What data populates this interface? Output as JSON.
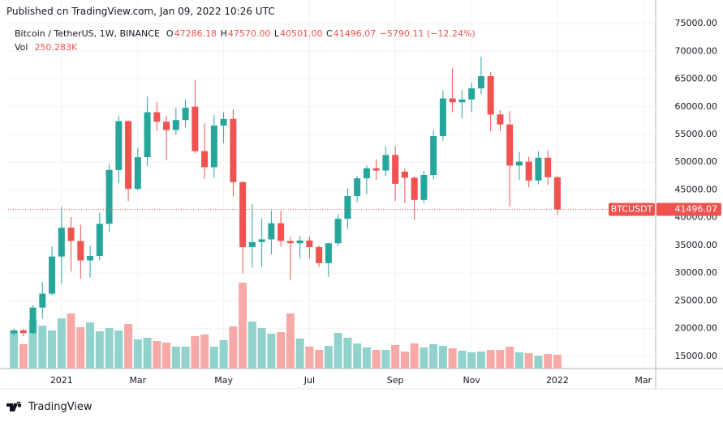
{
  "published": "Published on TradingView.com, Jan 09, 2022 10:26 UTC",
  "brand": "TradingView",
  "legend": {
    "symbol": "Bitcoin / TetherUS, 1W, BINANCE",
    "o_prefix": "O",
    "o": "47286.18",
    "h_prefix": "H",
    "h": "47570.00",
    "l_prefix": "L",
    "l": "40501.00",
    "c_prefix": "C",
    "c": "41496.07",
    "change": "−5790.11 (−12.24%)",
    "vol_prefix": "Vol",
    "vol": "250.283K"
  },
  "chart_data": {
    "type": "candlestick",
    "ticker_tag": "BTCUSDT",
    "last_price_label": "41496.07",
    "up_color": "#26a69a",
    "down_color": "#ef5350",
    "volume_up_color": "#92d2cc",
    "volume_down_color": "#f7a9a7",
    "open": [
      19150,
      19700,
      19200,
      23800,
      26300,
      33000,
      38200,
      35800,
      32300,
      33100,
      38900,
      48600,
      57400,
      45200,
      50900,
      59000,
      57300,
      55800,
      57600,
      60000,
      52000,
      49100,
      56600,
      57800,
      46400,
      34700,
      35600,
      36100,
      39000,
      35800,
      35400,
      35900,
      34700,
      31800,
      35400,
      39800,
      43900,
      47100,
      48900,
      48500,
      51300,
      48300,
      47200,
      43200,
      47700,
      54700,
      61500,
      60800,
      61300,
      63300,
      65500,
      58600,
      56800,
      49400,
      50100,
      46700,
      50800,
      47286.18
    ],
    "high": [
      19950,
      19900,
      24200,
      28400,
      34800,
      41950,
      40100,
      38700,
      34900,
      40900,
      49700,
      58400,
      57500,
      52600,
      61800,
      60800,
      58400,
      59800,
      61300,
      64850,
      57000,
      58500,
      59000,
      59500,
      46600,
      42400,
      39900,
      41300,
      41300,
      36600,
      36700,
      36600,
      35000,
      35500,
      40600,
      45300,
      47500,
      49400,
      50500,
      52900,
      52900,
      48800,
      47500,
      48500,
      55700,
      62900,
      67000,
      63000,
      64300,
      69000,
      66300,
      59400,
      59200,
      51900,
      51000,
      52000,
      52100,
      47570
    ],
    "low": [
      18700,
      18600,
      19000,
      21800,
      26000,
      28100,
      30300,
      29000,
      29200,
      32300,
      37400,
      46200,
      43000,
      44900,
      49300,
      55600,
      50400,
      54900,
      56300,
      51600,
      47000,
      47200,
      53400,
      43800,
      30000,
      31000,
      31100,
      33400,
      34800,
      28800,
      32700,
      32700,
      31100,
      29300,
      34900,
      38000,
      42800,
      44200,
      46800,
      47500,
      43000,
      42600,
      39600,
      42600,
      46900,
      53900,
      59000,
      57900,
      59000,
      62300,
      55600,
      55600,
      42000,
      46800,
      45500,
      46000,
      45900,
      40501
    ],
    "close": [
      19700,
      19200,
      23800,
      26300,
      33000,
      38200,
      35800,
      32300,
      33100,
      38900,
      48600,
      57400,
      45200,
      50900,
      59000,
      57300,
      55800,
      57600,
      59800,
      52000,
      49100,
      56600,
      57800,
      46400,
      34700,
      35600,
      36100,
      39000,
      35800,
      35400,
      35900,
      34700,
      31800,
      35400,
      39800,
      43900,
      47100,
      48900,
      48500,
      51300,
      46100,
      47200,
      43200,
      47700,
      54700,
      61500,
      60800,
      61300,
      63300,
      65500,
      58600,
      56800,
      49400,
      50100,
      46700,
      50800,
      47300,
      41496.07
    ],
    "volume": [
      692000,
      442000,
      883000,
      780000,
      692000,
      913000,
      1001000,
      751000,
      839000,
      677000,
      736000,
      692000,
      810000,
      530000,
      559000,
      500000,
      471000,
      397000,
      397000,
      589000,
      618000,
      397000,
      515000,
      765000,
      1560000,
      854000,
      736000,
      633000,
      662000,
      1001000,
      545000,
      397000,
      339000,
      412000,
      648000,
      559000,
      456000,
      383000,
      339000,
      339000,
      427000,
      309000,
      456000,
      383000,
      442000,
      412000,
      368000,
      324000,
      294000,
      309000,
      339000,
      339000,
      397000,
      294000,
      280000,
      236000,
      265000,
      250283
    ],
    "xlim": [
      -0.6,
      67.3
    ],
    "xticks": [
      {
        "value": 5,
        "label": "2021"
      },
      {
        "value": 13,
        "label": "Mar"
      },
      {
        "value": 22,
        "label": "May"
      },
      {
        "value": 31,
        "label": "Jul"
      },
      {
        "value": 40,
        "label": "Sep"
      },
      {
        "value": 48,
        "label": "Nov"
      },
      {
        "value": 57,
        "label": "2022"
      },
      {
        "value": 66,
        "label": "Mar"
      }
    ],
    "ylim": [
      12810,
      76314
    ],
    "yticks": [
      {
        "value": 15000,
        "label": "15000.00"
      },
      {
        "value": 20000,
        "label": "20000.00"
      },
      {
        "value": 25000,
        "label": "25000.00"
      },
      {
        "value": 30000,
        "label": "30000.00"
      },
      {
        "value": 35000,
        "label": "35000.00"
      },
      {
        "value": 40000,
        "label": "40000.00"
      },
      {
        "value": 45000,
        "label": "45000.00"
      },
      {
        "value": 50000,
        "label": "50000.00"
      },
      {
        "value": 55000,
        "label": "55000.00"
      },
      {
        "value": 60000,
        "label": "60000.00"
      },
      {
        "value": 65000,
        "label": "65000.00"
      },
      {
        "value": 70000,
        "label": "70000.00"
      },
      {
        "value": 75000,
        "label": "75000.00"
      }
    ],
    "volume_ylim": [
      0,
      6400000
    ],
    "grid": true
  }
}
